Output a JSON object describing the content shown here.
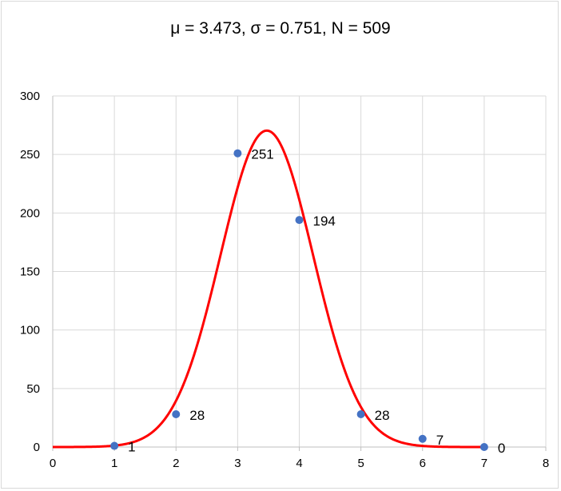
{
  "chart_data": {
    "type": "scatter",
    "title": "μ = 3.473, σ = 0.751, N = 509",
    "xlabel": "",
    "ylabel": "",
    "xlim": [
      0,
      8
    ],
    "ylim": [
      0,
      300
    ],
    "x_ticks": [
      0,
      1,
      2,
      3,
      4,
      5,
      6,
      7,
      8
    ],
    "y_ticks": [
      0,
      50,
      100,
      150,
      200,
      250,
      300
    ],
    "grid": true,
    "legend": "none",
    "series": [
      {
        "type": "scatter",
        "color": "#4472c4",
        "points": [
          {
            "x": 1,
            "y": 1,
            "label": "1"
          },
          {
            "x": 2,
            "y": 28,
            "label": "28"
          },
          {
            "x": 3,
            "y": 251,
            "label": "251"
          },
          {
            "x": 4,
            "y": 194,
            "label": "194"
          },
          {
            "x": 5,
            "y": 28,
            "label": "28"
          },
          {
            "x": 6,
            "y": 7,
            "label": "7"
          },
          {
            "x": 7,
            "y": 0,
            "label": "0"
          }
        ]
      },
      {
        "type": "line",
        "color": "#ff0000",
        "curve": "normal",
        "mu": 3.473,
        "sigma": 0.751,
        "N": 509
      }
    ]
  }
}
